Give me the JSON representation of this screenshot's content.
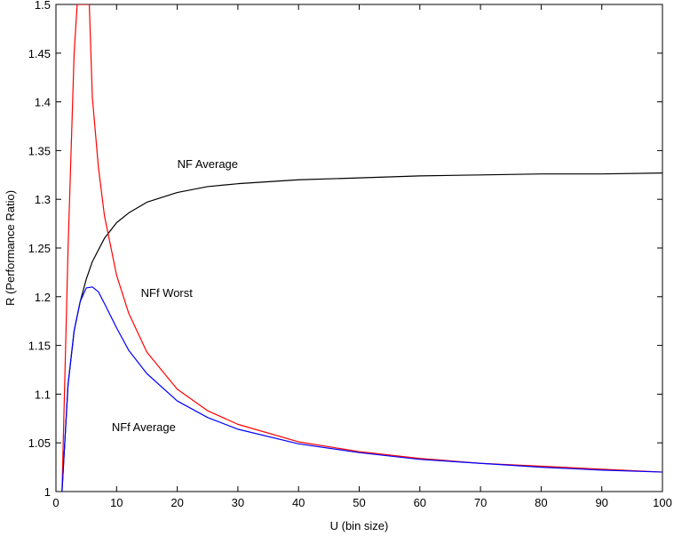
{
  "chart_data": {
    "type": "line",
    "xlabel": "U (bin size)",
    "ylabel": "R (Performance Ratio)",
    "xlim": [
      0,
      100
    ],
    "ylim": [
      1,
      1.5
    ],
    "xticks": [
      0,
      10,
      20,
      30,
      40,
      50,
      60,
      70,
      80,
      90,
      100
    ],
    "yticks": [
      1,
      1.05,
      1.1,
      1.15,
      1.2,
      1.25,
      1.3,
      1.35,
      1.4,
      1.45,
      1.5
    ],
    "ytick_labels": [
      "1",
      "1.05",
      "1.1",
      "1.15",
      "1.2",
      "1.25",
      "1.3",
      "1.35",
      "1.4",
      "1.45",
      "1.5"
    ],
    "grid": false,
    "series": [
      {
        "name": "NF  Average",
        "color": "#000000",
        "x": [
          1,
          2,
          3,
          4,
          5,
          6,
          8,
          10,
          12,
          15,
          20,
          25,
          30,
          40,
          50,
          60,
          70,
          80,
          90,
          100
        ],
        "y": [
          1.0,
          1.11,
          1.165,
          1.195,
          1.218,
          1.236,
          1.26,
          1.276,
          1.286,
          1.297,
          1.307,
          1.313,
          1.316,
          1.32,
          1.322,
          1.324,
          1.325,
          1.326,
          1.326,
          1.327
        ]
      },
      {
        "name": "NFf  Worst",
        "color": "#ff0000",
        "x": [
          1,
          2,
          3,
          3.5,
          5.5,
          6,
          7,
          8,
          10,
          12,
          15,
          20,
          25,
          30,
          40,
          50,
          60,
          70,
          80,
          90,
          100
        ],
        "y": [
          1.0,
          1.25,
          1.45,
          1.5,
          1.5,
          1.405,
          1.333,
          1.283,
          1.222,
          1.183,
          1.143,
          1.105,
          1.083,
          1.069,
          1.051,
          1.041,
          1.034,
          1.029,
          1.026,
          1.023,
          1.02
        ]
      },
      {
        "name": "NFf  Average",
        "color": "#0000ff",
        "x": [
          1,
          2,
          3,
          4,
          5,
          6,
          7,
          8,
          10,
          12,
          15,
          20,
          25,
          30,
          40,
          50,
          60,
          70,
          80,
          90,
          100
        ],
        "y": [
          1.0,
          1.11,
          1.165,
          1.195,
          1.209,
          1.21,
          1.205,
          1.193,
          1.168,
          1.145,
          1.121,
          1.093,
          1.076,
          1.064,
          1.049,
          1.04,
          1.033,
          1.029,
          1.025,
          1.022,
          1.02
        ]
      }
    ],
    "annotations": [
      {
        "text": "NF  Average",
        "x": 20,
        "y": 1.332
      },
      {
        "text": "NFf  Worst",
        "x": 14,
        "y": 1.2
      },
      {
        "text": "NFf  Average",
        "x": 9.2,
        "y": 1.062
      }
    ]
  }
}
